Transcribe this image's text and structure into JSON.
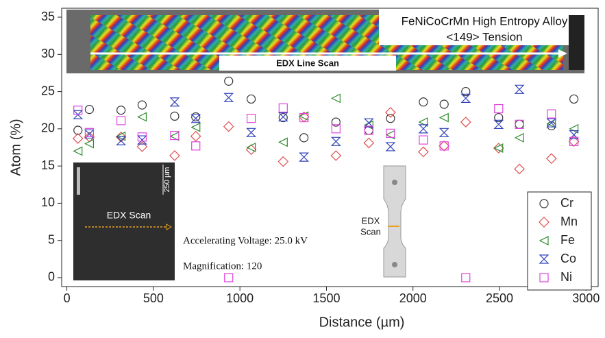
{
  "chart_data": {
    "type": "scatter",
    "x_label": "Distance (µm)",
    "y_label": "Atom (%)",
    "x": [
      64,
      130,
      313,
      435,
      623,
      745,
      935,
      1065,
      1250,
      1370,
      1555,
      1745,
      1870,
      2060,
      2180,
      2305,
      2495,
      2615,
      2800,
      2930
    ],
    "series": [
      {
        "name": "Cr",
        "color": "#333333",
        "marker": "circle",
        "values": [
          19.8,
          22.6,
          22.5,
          23.2,
          21.7,
          21.6,
          26.4,
          24.0,
          21.5,
          18.8,
          20.9,
          19.8,
          21.4,
          23.6,
          23.3,
          25.0,
          21.5,
          20.6,
          20.4,
          24.0
        ]
      },
      {
        "name": "Mn",
        "color": "#e0504f",
        "marker": "diamond",
        "values": [
          18.7,
          18.9,
          18.9,
          17.6,
          16.4,
          19.0,
          20.3,
          17.2,
          15.6,
          21.6,
          16.4,
          18.1,
          22.2,
          16.9,
          17.7,
          20.9,
          17.4,
          14.6,
          16.0,
          18.3
        ]
      },
      {
        "name": "Fe",
        "color": "#2e8b2e",
        "marker": "triangle",
        "values": [
          17.0,
          18.0,
          19.0,
          21.6,
          19.0,
          20.2,
          null,
          17.5,
          18.2,
          21.7,
          24.1,
          20.5,
          19.2,
          20.9,
          21.5,
          null,
          17.4,
          18.8,
          20.7,
          20.0
        ]
      },
      {
        "name": "Co",
        "color": "#3344bb",
        "marker": "hourglass",
        "values": [
          21.9,
          19.3,
          18.4,
          18.5,
          23.6,
          21.4,
          24.2,
          19.5,
          21.6,
          16.2,
          18.3,
          20.8,
          17.6,
          20.0,
          19.5,
          24.1,
          20.6,
          25.3,
          20.8,
          19.2
        ]
      },
      {
        "name": "Ni",
        "color": "#e040e0",
        "marker": "square",
        "values": [
          22.5,
          19.5,
          21.1,
          18.9,
          19.1,
          17.7,
          0,
          21.4,
          22.8,
          21.5,
          20.0,
          19.8,
          19.4,
          18.5,
          17.7,
          0,
          22.7,
          20.6,
          22.0,
          18.3
        ]
      }
    ],
    "xlim": [
      -30,
      3070
    ],
    "ylim": [
      -1.2,
      36.2
    ],
    "xticks": [
      0,
      500,
      1000,
      1500,
      2000,
      2500,
      3000
    ],
    "yticks": [
      0,
      5,
      10,
      15,
      20,
      25,
      30,
      35
    ],
    "legend": "lower right",
    "annotations": {
      "alloy": "FeNiCoCrMn High Entropy Alloy",
      "orientation": "<149> Tension",
      "line_scan": "EDX Line Scan",
      "sem_scan": "EDX Scan",
      "scale_bar": "250 µm",
      "voltage": "Accelerating Voltage: 25.0 kV",
      "magnification": "Magnification: 120",
      "specimen_1": "EDX",
      "specimen_2": "Scan"
    }
  }
}
